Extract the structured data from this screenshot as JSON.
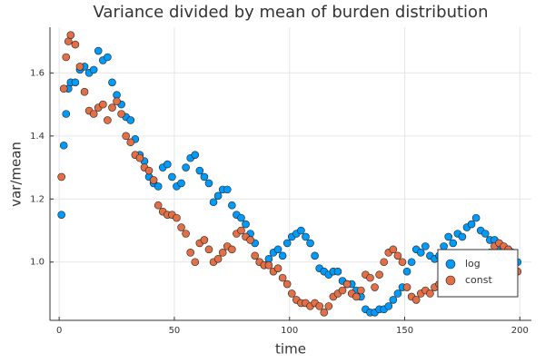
{
  "chart_data": {
    "type": "scatter",
    "title": "Variance divided by mean of burden distribution",
    "x_label": "time",
    "y_label": "var/mean",
    "xlim": [
      -4,
      205
    ],
    "ylim": [
      0.815,
      1.745
    ],
    "xticks": [
      0,
      50,
      100,
      150,
      200
    ],
    "yticks": [
      {
        "value": 1.0,
        "label": "1.0"
      },
      {
        "value": 1.2,
        "label": "1.2"
      },
      {
        "value": 1.4,
        "label": "1.4"
      },
      {
        "value": 1.6,
        "label": "1.6"
      }
    ],
    "grid": true,
    "legend_position": "right",
    "x": [
      1,
      2,
      3,
      4,
      5,
      7,
      9,
      11,
      13,
      15,
      17,
      19,
      21,
      23,
      25,
      27,
      29,
      31,
      33,
      35,
      37,
      39,
      41,
      43,
      45,
      47,
      49,
      51,
      53,
      55,
      57,
      59,
      61,
      63,
      65,
      67,
      69,
      71,
      73,
      75,
      77,
      79,
      81,
      83,
      85,
      87,
      89,
      91,
      93,
      95,
      97,
      99,
      101,
      103,
      105,
      107,
      109,
      111,
      113,
      115,
      117,
      119,
      121,
      123,
      125,
      127,
      129,
      131,
      133,
      135,
      137,
      139,
      141,
      143,
      145,
      147,
      149,
      151,
      153,
      155,
      157,
      159,
      161,
      163,
      165,
      167,
      169,
      171,
      173,
      175,
      177,
      179,
      181,
      183,
      185,
      187,
      189,
      191,
      193,
      195,
      197,
      199
    ],
    "series": [
      {
        "name": "log",
        "color": "#009afa",
        "values": [
          1.15,
          1.37,
          1.47,
          1.55,
          1.57,
          1.57,
          1.61,
          1.62,
          1.6,
          1.61,
          1.67,
          1.64,
          1.65,
          1.57,
          1.53,
          1.5,
          1.46,
          1.45,
          1.39,
          1.34,
          1.32,
          1.27,
          1.25,
          1.24,
          1.3,
          1.31,
          1.27,
          1.24,
          1.25,
          1.3,
          1.33,
          1.34,
          1.29,
          1.27,
          1.25,
          1.19,
          1.21,
          1.23,
          1.23,
          1.18,
          1.15,
          1.14,
          1.12,
          1.09,
          1.06,
          1.0,
          0.99,
          1.01,
          1.03,
          1.04,
          1.02,
          1.06,
          1.08,
          1.09,
          1.1,
          1.08,
          1.06,
          1.02,
          0.98,
          0.97,
          0.96,
          0.97,
          0.97,
          0.94,
          0.93,
          0.93,
          0.91,
          0.89,
          0.85,
          0.84,
          0.84,
          0.85,
          0.85,
          0.86,
          0.88,
          0.9,
          0.92,
          0.97,
          1.0,
          1.04,
          1.03,
          1.05,
          1.02,
          1.01,
          1.02,
          1.05,
          1.08,
          1.06,
          1.09,
          1.08,
          1.11,
          1.12,
          1.14,
          1.1,
          1.09,
          1.07,
          1.07,
          1.05,
          1.04,
          1.04,
          1.03,
          1.0
        ]
      },
      {
        "name": "const",
        "color": "#e36f47",
        "values": [
          1.27,
          1.55,
          1.65,
          1.7,
          1.72,
          1.69,
          1.62,
          1.54,
          1.48,
          1.47,
          1.49,
          1.5,
          1.45,
          1.49,
          1.51,
          1.47,
          1.4,
          1.38,
          1.34,
          1.33,
          1.3,
          1.29,
          1.26,
          1.18,
          1.16,
          1.15,
          1.15,
          1.14,
          1.11,
          1.09,
          1.03,
          1.0,
          1.06,
          1.07,
          1.04,
          1.0,
          1.01,
          1.03,
          1.05,
          1.04,
          1.09,
          1.1,
          1.08,
          1.07,
          1.02,
          1.0,
          0.99,
          0.99,
          0.97,
          0.98,
          0.95,
          0.93,
          0.9,
          0.88,
          0.87,
          0.87,
          0.86,
          0.87,
          0.86,
          0.84,
          0.86,
          0.89,
          0.9,
          0.91,
          0.93,
          0.9,
          0.89,
          0.91,
          0.96,
          0.95,
          0.92,
          0.96,
          1.0,
          1.03,
          1.04,
          1.02,
          1.0,
          0.92,
          0.89,
          0.88,
          0.9,
          0.91,
          0.9,
          0.92,
          0.93,
          0.93,
          0.95,
          0.96,
          0.98,
          1.0,
          1.01,
          1.0,
          0.98,
          0.99,
          1.02,
          1.03,
          1.05,
          1.06,
          1.05,
          1.04,
          1.0,
          0.97
        ]
      }
    ]
  }
}
